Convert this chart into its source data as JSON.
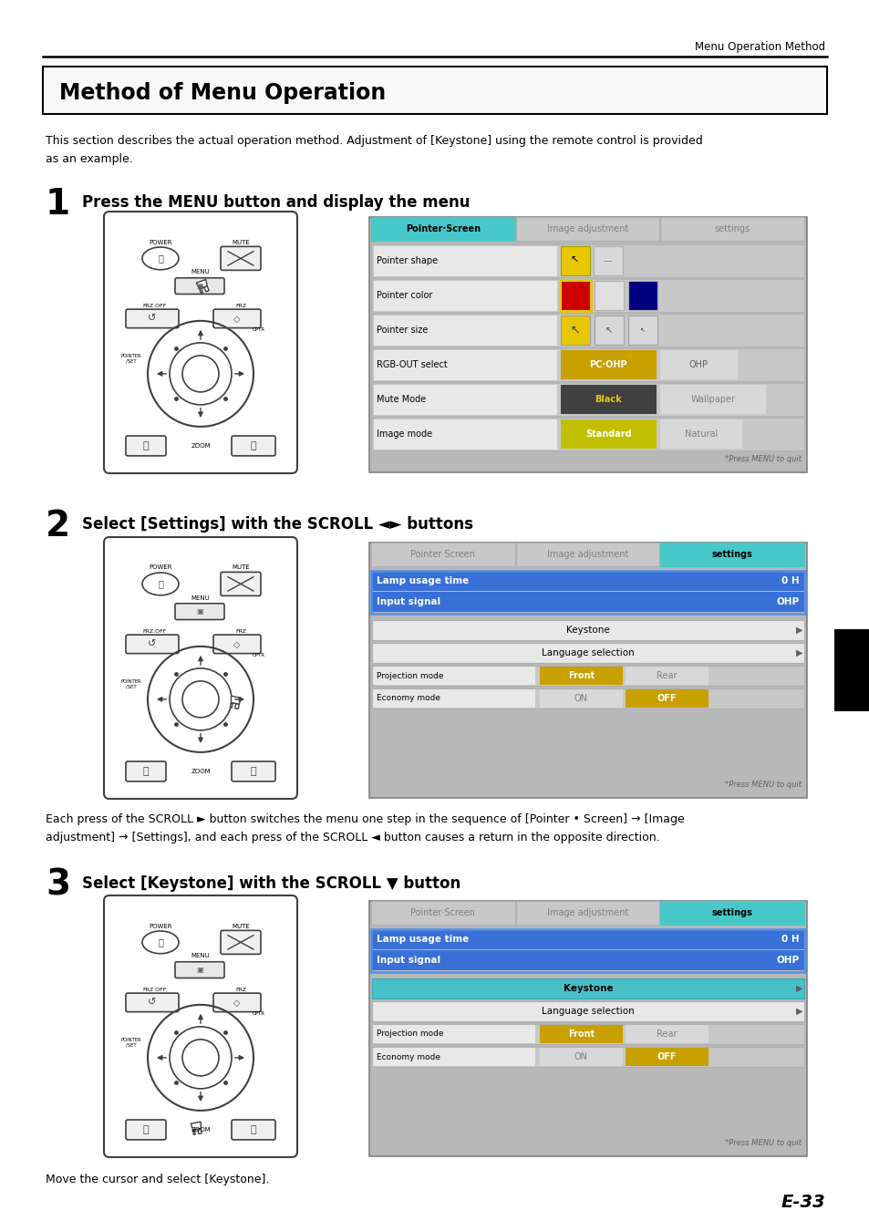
{
  "page_header": "Menu Operation Method",
  "title": "Method of Menu Operation",
  "intro_text": "This section describes the actual operation method. Adjustment of [Keystone] using the remote control is provided\nas an example.",
  "step1_num": "1",
  "step1_text": "Press the MENU button and display the menu",
  "step2_num": "2",
  "step2_text": "Select [Settings] with the SCROLL ◄► buttons",
  "step2_desc": "Each press of the SCROLL ► button switches the menu one step in the sequence of [Pointer • Screen] → [Image\nadjustment] → [Settings], and each press of the SCROLL ◄ button causes a return in the opposite direction.",
  "step3_num": "3",
  "step3_text": "Select [Keystone] with the SCROLL ▼ button",
  "step3_desc": "Move the cursor and select [Keystone].",
  "footer": "E-33",
  "bg_color": "#ffffff",
  "tab_active_color": "#40c8c8",
  "black_tab": "#000000"
}
